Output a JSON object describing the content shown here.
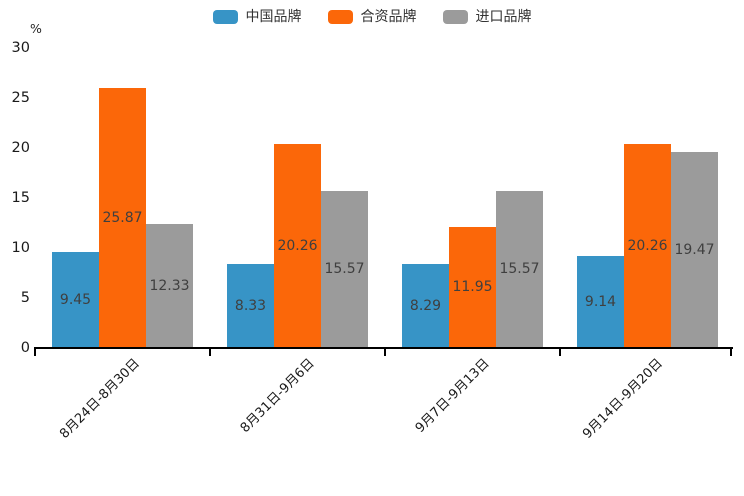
{
  "chart_data": {
    "type": "bar",
    "title": "",
    "unit_label": "%",
    "xlabel": "",
    "ylabel": "%",
    "categories": [
      "8月24日-8月30日",
      "8月31日-9月6日",
      "9月7日-9月13日",
      "9月14日-9月20日"
    ],
    "series": [
      {
        "name": "中国品牌",
        "color": "#3794C6",
        "values": [
          9.45,
          8.33,
          8.29,
          9.14
        ]
      },
      {
        "name": "合资品牌",
        "color": "#FB6709",
        "values": [
          25.87,
          20.26,
          11.95,
          20.26
        ]
      },
      {
        "name": "进口品牌",
        "color": "#9B9B9B",
        "values": [
          12.33,
          15.57,
          15.57,
          19.47
        ]
      }
    ],
    "ylim": [
      0,
      30
    ],
    "yticks": [
      0,
      5,
      10,
      15,
      20,
      25,
      30
    ],
    "value_label_decimals": 2,
    "legend_position": "top",
    "grid": false,
    "colors": {
      "axis": "#000000",
      "value_label_text": "#3f3f3f",
      "tick_text": "#1a1a1a"
    }
  }
}
